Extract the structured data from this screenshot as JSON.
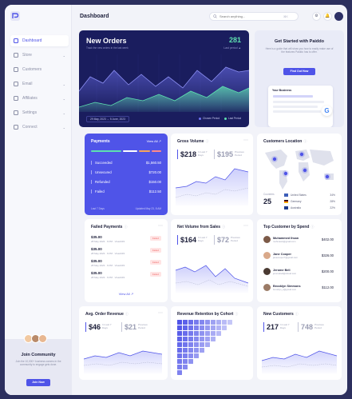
{
  "sidebar": {
    "items": [
      {
        "label": "Dashboard",
        "icon": "grid-icon",
        "active": true,
        "chevron": false
      },
      {
        "label": "Store",
        "icon": "store-icon",
        "active": false,
        "chevron": true
      },
      {
        "label": "Customers",
        "icon": "users-icon",
        "active": false,
        "chevron": false
      },
      {
        "label": "Email",
        "icon": "mail-icon",
        "active": false,
        "chevron": true
      },
      {
        "label": "Affiliates",
        "icon": "affiliate-icon",
        "active": false,
        "chevron": true
      },
      {
        "label": "Settings",
        "icon": "gear-icon",
        "active": false,
        "chevron": true
      },
      {
        "label": "Connect",
        "icon": "connect-icon",
        "active": false,
        "chevron": true
      }
    ],
    "community": {
      "title": "Join Community",
      "text": "Join the 10,000+ business owners in the community to engage gets done.",
      "button": "Join Now"
    }
  },
  "topbar": {
    "title": "Dashboard",
    "search_placeholder": "Search anything...",
    "search_shortcut": "⌘K"
  },
  "new_orders": {
    "title": "New Orders",
    "subtitle": "Track the new orders in the last week",
    "value": "281",
    "value_caption": "Last period ▲",
    "date_range": "29 May, 2023 → 5 June, 2023",
    "legend": [
      "Chosen Period",
      "Last Period"
    ],
    "colors": {
      "bg": "#1a1d5e",
      "series_a": "#5ee0b0",
      "series_b": "#6f73f0"
    }
  },
  "promo": {
    "title": "Get Started with Paiddo",
    "text": "Here is a guide that will show you how to easily make use of the features Paiddo has to offer.",
    "button": "Find Out How",
    "mock_title": "Your Business"
  },
  "payments": {
    "title": "Payments",
    "view_all": "View All ↗",
    "rows": [
      {
        "label": "Succeeded",
        "amount": "$1,560.50"
      },
      {
        "label": "Unsecured",
        "amount": "$720.00"
      },
      {
        "label": "Refunded",
        "amount": "$150.00"
      },
      {
        "label": "Failed",
        "amount": "$112.50"
      }
    ],
    "footer_left": "Last 7 Days",
    "footer_right": "Updated May 23, 8 AM",
    "bar_colors": [
      "#5ee0b0",
      "#ffffff",
      "#f6a55b",
      "#ff8a8a"
    ]
  },
  "gross_volume": {
    "title": "Gross Volume",
    "value": "$218",
    "mini": "In Last 7 Days",
    "prev_value": "$195",
    "prev_mini": "Previous Period"
  },
  "customers_location": {
    "title": "Customers Location",
    "count": "25",
    "count_label": "Countries",
    "rows": [
      {
        "country": "United States",
        "pct": "34%"
      },
      {
        "country": "Germany",
        "pct": "28%"
      },
      {
        "country": "Australia",
        "pct": "22%"
      }
    ]
  },
  "failed_payments": {
    "title": "Failed Payments",
    "badge": "Failed",
    "rows": [
      {
        "amount": "$35.00",
        "meta": "28 May 2023 · 6 PM · Visa4433"
      },
      {
        "amount": "$35.00",
        "meta": "28 May 2023 · 6 PM · Visa4433"
      },
      {
        "amount": "$35.00",
        "meta": "28 May 2023 · 6 PM · Visa4433"
      },
      {
        "amount": "$35.00",
        "meta": "28 May 2023 · 6 PM · Visa4433"
      }
    ],
    "view_all": "View All ↗"
  },
  "net_volume": {
    "title": "Net Volume from Sales",
    "value": "$164",
    "mini": "In Last 7 Days",
    "prev_value": "$72",
    "prev_mini": "Previous Period"
  },
  "top_customers": {
    "title": "Top Customer by Spend",
    "rows": [
      {
        "name": "Muhammed Ihsan",
        "email": "muhmasin@gmail.com",
        "amount": "$402.00"
      },
      {
        "name": "Jane Cooper",
        "email": "janecooper7@gmail.com",
        "amount": "$326.00"
      },
      {
        "name": "Jerome Bell",
        "email": "jeromebell@icloud.com",
        "amount": "$200.00"
      },
      {
        "name": "Brooklyn Simmons",
        "email": "brooklyn_s@gmail.com",
        "amount": "$112.00"
      }
    ]
  },
  "avg_order": {
    "title": "Avg. Order Revenue",
    "value": "$46",
    "mini": "In Last 7 Days",
    "prev_value": "$21",
    "prev_mini": "Previous Period"
  },
  "retention": {
    "title": "Revenue Retention by Cohort"
  },
  "new_customers": {
    "title": "New Customers",
    "value": "217",
    "mini": "In Last 7 Days",
    "prev_value": "748",
    "prev_mini": "Previous Period"
  },
  "accent": "#4f54e8"
}
